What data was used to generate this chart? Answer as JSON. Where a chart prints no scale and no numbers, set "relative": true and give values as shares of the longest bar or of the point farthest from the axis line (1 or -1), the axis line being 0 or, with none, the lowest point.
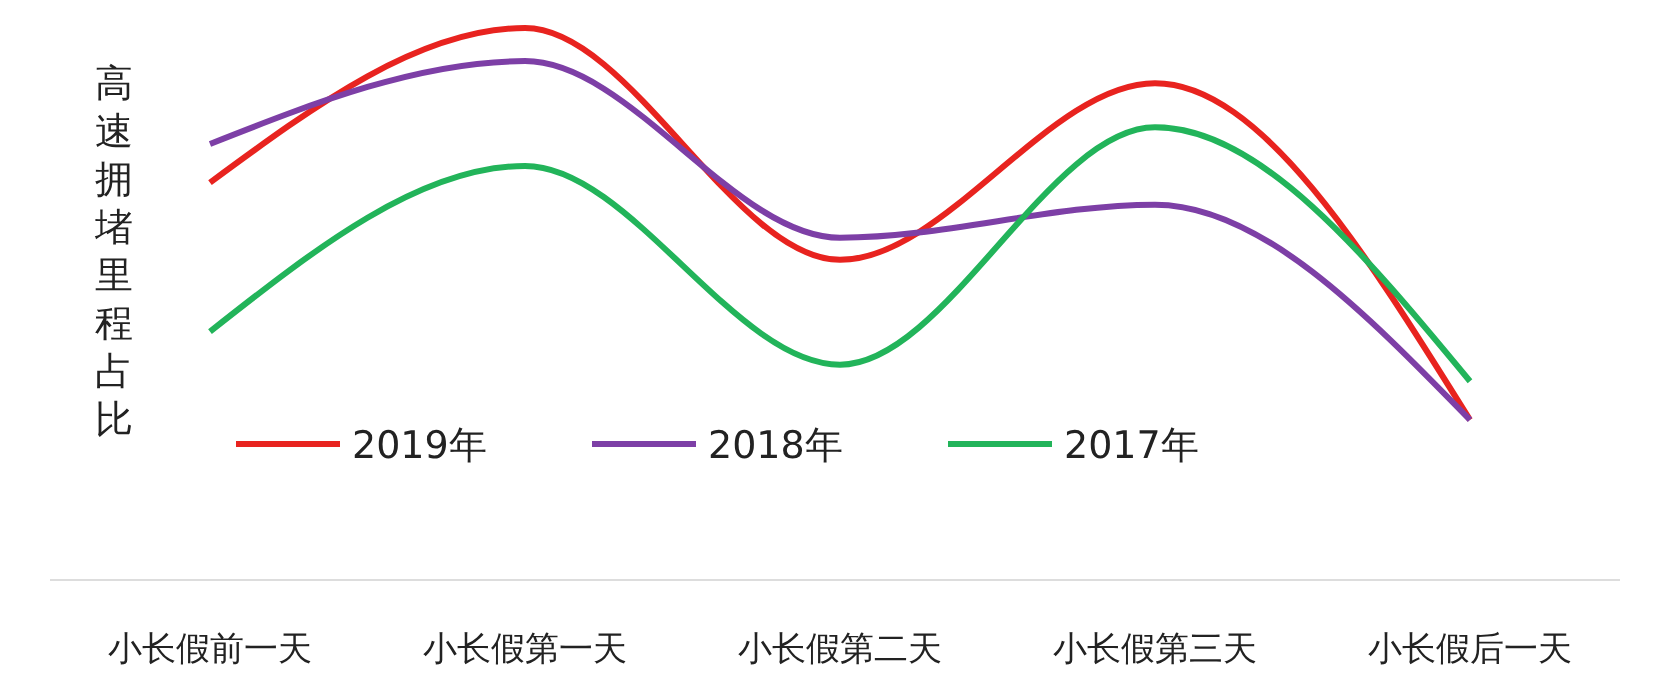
{
  "chart_data": {
    "type": "line",
    "relative": true,
    "ylabel": "高速拥堵里程占比",
    "categories": [
      "小长假前一天",
      "小长假第一天",
      "小长假第二天",
      "小长假第三天",
      "小长假后一天"
    ],
    "series": [
      {
        "name": "2019年",
        "color": "#e8231f",
        "values": [
          0.72,
          1,
          0.58,
          0.9,
          0.29
        ]
      },
      {
        "name": "2018年",
        "color": "#7d3fa6",
        "values": [
          0.79,
          0.94,
          0.62,
          0.68,
          0.29
        ]
      },
      {
        "name": "2017年",
        "color": "#22b45a",
        "values": [
          0.45,
          0.75,
          0.39,
          0.82,
          0.36
        ]
      }
    ],
    "legend": "bottom left",
    "grid": false,
    "marker": "none",
    "line_style": "solid"
  }
}
